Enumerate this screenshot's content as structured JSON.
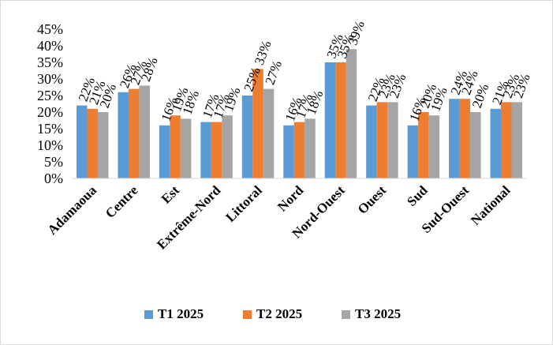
{
  "chart_data": {
    "type": "bar",
    "title": "",
    "xlabel": "",
    "ylabel": "",
    "categories": [
      "Adamaoua",
      "Centre",
      "Est",
      "Extrême-Nord",
      "Littoral",
      "Nord",
      "Nord-Ouest",
      "Ouest",
      "Sud",
      "Sud-Ouest",
      "National"
    ],
    "series": [
      {
        "name": "T1 2025",
        "color": "#5B9BD5",
        "values": [
          22,
          26,
          16,
          17,
          25,
          16,
          35,
          22,
          16,
          24,
          21
        ]
      },
      {
        "name": "T2 2025",
        "color": "#ED7D31",
        "values": [
          21,
          27,
          19,
          17,
          33,
          17,
          35,
          23,
          20,
          24,
          23
        ]
      },
      {
        "name": "T3 2025",
        "color": "#A5A5A5",
        "values": [
          20,
          28,
          18,
          19,
          27,
          18,
          39,
          23,
          19,
          20,
          23
        ]
      }
    ],
    "ylim": [
      0,
      45
    ],
    "yticks": [
      0,
      5,
      10,
      15,
      20,
      25,
      30,
      35,
      40,
      45
    ],
    "y_tick_suffix": "%",
    "data_label_suffix": "%",
    "grid": false,
    "legend_position": "bottom"
  }
}
